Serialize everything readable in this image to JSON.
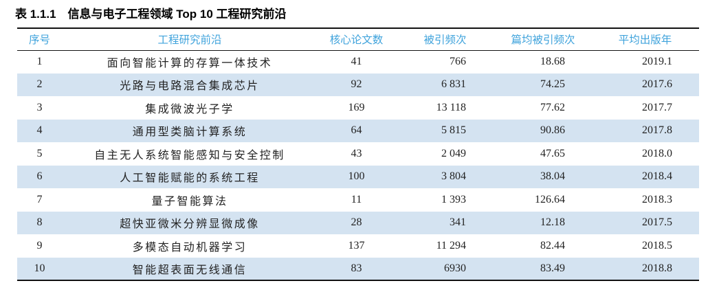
{
  "page": {
    "title": "表 1.1.1　信息与电子工程领域 Top 10 工程研究前沿"
  },
  "table": {
    "columns": [
      "序号",
      "工程研究前沿",
      "核心论文数",
      "被引频次",
      "篇均被引频次",
      "平均出版年"
    ],
    "rows": [
      [
        "1",
        "面向智能计算的存算一体技术",
        "41",
        "766",
        "18.68",
        "2019.1"
      ],
      [
        "2",
        "光路与电路混合集成芯片",
        "92",
        "6 831",
        "74.25",
        "2017.6"
      ],
      [
        "3",
        "集成微波光子学",
        "169",
        "13 118",
        "77.62",
        "2017.7"
      ],
      [
        "4",
        "通用型类脑计算系统",
        "64",
        "5 815",
        "90.86",
        "2017.8"
      ],
      [
        "5",
        "自主无人系统智能感知与安全控制",
        "43",
        "2 049",
        "47.65",
        "2018.0"
      ],
      [
        "6",
        "人工智能赋能的系统工程",
        "100",
        "3 804",
        "38.04",
        "2018.4"
      ],
      [
        "7",
        "量子智能算法",
        "11",
        "1 393",
        "126.64",
        "2018.3"
      ],
      [
        "8",
        "超快亚微米分辨显微成像",
        "28",
        "341",
        "12.18",
        "2017.5"
      ],
      [
        "9",
        "多模态自动机器学习",
        "137",
        "11 294",
        "82.44",
        "2018.5"
      ],
      [
        "10",
        "智能超表面无线通信",
        "83",
        "6930",
        "83.49",
        "2018.8"
      ]
    ]
  },
  "colors": {
    "header_text": "#3FA3DC",
    "row_stripe": "#D4E3F1",
    "border": "#111111",
    "body_text": "#222222"
  }
}
